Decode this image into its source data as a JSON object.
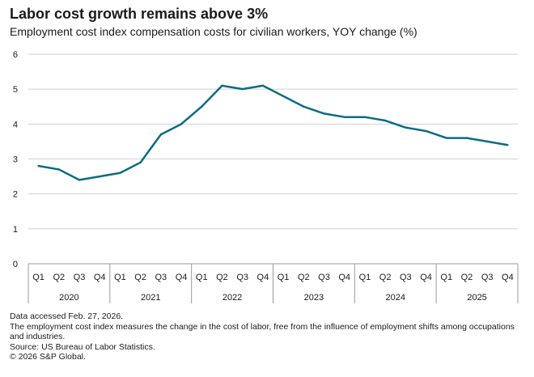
{
  "chart_data": {
    "type": "line",
    "title": "Labor cost growth remains above 3%",
    "subtitle": "Employment cost index compensation costs for civilian workers, YOY change (%)",
    "ylim": [
      0,
      6
    ],
    "yticks": [
      "0",
      "1",
      "2",
      "3",
      "4",
      "5",
      "6"
    ],
    "grid": true,
    "quarters": [
      "Q1",
      "Q2",
      "Q3",
      "Q4"
    ],
    "years": [
      "2020",
      "2021",
      "2022",
      "2023",
      "2024",
      "2025"
    ],
    "series": [
      {
        "color": "#0b6c84",
        "values": [
          2.8,
          2.7,
          2.4,
          2.5,
          2.6,
          2.9,
          3.7,
          4.0,
          4.5,
          5.1,
          5.0,
          5.1,
          4.8,
          4.5,
          4.3,
          4.2,
          4.2,
          4.1,
          3.9,
          3.8,
          3.6,
          3.6,
          3.5,
          3.4
        ]
      }
    ]
  },
  "notes": [
    "Data accessed Feb. 27, 2026.",
    "The employment cost index measures the change in the cost of labor, free from the influence of employment shifts among occupations and industries.",
    "Source: US Bureau of Labor Statistics.",
    "© 2026 S&P Global."
  ]
}
